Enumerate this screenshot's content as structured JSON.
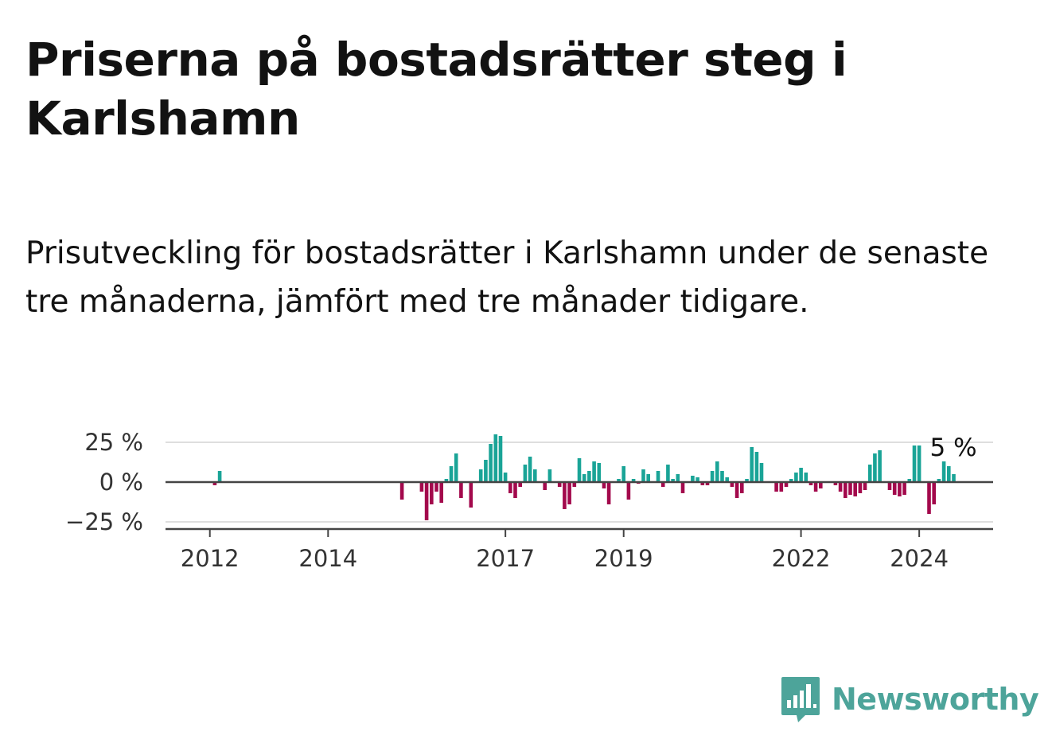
{
  "title": "Priserna på bostadsrätter steg i Karlshamn",
  "subtitle": "Prisutveckling för bostadsrätter i Karlshamn under de senaste tre månaderna, jämfört med tre månader tidigare.",
  "colors": {
    "positive": "#1aa497",
    "negative": "#a3094c",
    "grid": "#dedede",
    "axis": "#444444",
    "brand": "#4da49a"
  },
  "logo": {
    "text": "Newsworthy",
    "icon": "bar-chart-speech-bubble-icon"
  },
  "chart_data": {
    "type": "bar",
    "title": "",
    "xlabel": "",
    "ylabel": "",
    "ylim": [
      -30,
      27
    ],
    "grid": true,
    "y_ticks": [
      {
        "value": 25,
        "label": "25 %"
      },
      {
        "value": 0,
        "label": "0 %"
      },
      {
        "value": -25,
        "label": "−25 %"
      }
    ],
    "x_ticks": [
      {
        "value": "2012-01",
        "label": "2012"
      },
      {
        "value": "2014-01",
        "label": "2014"
      },
      {
        "value": "2017-01",
        "label": "2017"
      },
      {
        "value": "2019-01",
        "label": "2019"
      },
      {
        "value": "2022-01",
        "label": "2022"
      },
      {
        "value": "2024-01",
        "label": "2024"
      }
    ],
    "last_value_label": "5 %",
    "x_start": "2011-04",
    "x_end": "2025-04",
    "series": [
      {
        "values": [
          {
            "x": "2012-02",
            "y": -2
          },
          {
            "x": "2012-03",
            "y": 7
          },
          {
            "x": "2015-04",
            "y": -11
          },
          {
            "x": "2015-08",
            "y": -6
          },
          {
            "x": "2015-09",
            "y": -24
          },
          {
            "x": "2015-10",
            "y": -14
          },
          {
            "x": "2015-11",
            "y": -6
          },
          {
            "x": "2015-12",
            "y": -13
          },
          {
            "x": "2016-01",
            "y": 2
          },
          {
            "x": "2016-02",
            "y": 10
          },
          {
            "x": "2016-03",
            "y": 18
          },
          {
            "x": "2016-04",
            "y": -10
          },
          {
            "x": "2016-06",
            "y": -16
          },
          {
            "x": "2016-08",
            "y": 8
          },
          {
            "x": "2016-09",
            "y": 14
          },
          {
            "x": "2016-10",
            "y": 24
          },
          {
            "x": "2016-11",
            "y": 30
          },
          {
            "x": "2016-12",
            "y": 29
          },
          {
            "x": "2017-01",
            "y": 6
          },
          {
            "x": "2017-02",
            "y": -7
          },
          {
            "x": "2017-03",
            "y": -10
          },
          {
            "x": "2017-04",
            "y": -3
          },
          {
            "x": "2017-05",
            "y": 11
          },
          {
            "x": "2017-06",
            "y": 16
          },
          {
            "x": "2017-07",
            "y": 8
          },
          {
            "x": "2017-09",
            "y": -5
          },
          {
            "x": "2017-10",
            "y": 8
          },
          {
            "x": "2017-12",
            "y": -3
          },
          {
            "x": "2018-01",
            "y": -17
          },
          {
            "x": "2018-02",
            "y": -14
          },
          {
            "x": "2018-03",
            "y": -3
          },
          {
            "x": "2018-04",
            "y": 15
          },
          {
            "x": "2018-05",
            "y": 5
          },
          {
            "x": "2018-06",
            "y": 7
          },
          {
            "x": "2018-07",
            "y": 13
          },
          {
            "x": "2018-08",
            "y": 12
          },
          {
            "x": "2018-09",
            "y": -4
          },
          {
            "x": "2018-10",
            "y": -14
          },
          {
            "x": "2018-12",
            "y": 2
          },
          {
            "x": "2019-01",
            "y": 10
          },
          {
            "x": "2019-02",
            "y": -11
          },
          {
            "x": "2019-03",
            "y": 2
          },
          {
            "x": "2019-04",
            "y": -1
          },
          {
            "x": "2019-05",
            "y": 8
          },
          {
            "x": "2019-06",
            "y": 5
          },
          {
            "x": "2019-08",
            "y": 7
          },
          {
            "x": "2019-09",
            "y": -3
          },
          {
            "x": "2019-10",
            "y": 11
          },
          {
            "x": "2019-11",
            "y": 2
          },
          {
            "x": "2019-12",
            "y": 5
          },
          {
            "x": "2020-01",
            "y": -7
          },
          {
            "x": "2020-03",
            "y": 4
          },
          {
            "x": "2020-04",
            "y": 3
          },
          {
            "x": "2020-05",
            "y": -2
          },
          {
            "x": "2020-06",
            "y": -2
          },
          {
            "x": "2020-07",
            "y": 7
          },
          {
            "x": "2020-08",
            "y": 13
          },
          {
            "x": "2020-09",
            "y": 7
          },
          {
            "x": "2020-10",
            "y": 3
          },
          {
            "x": "2020-11",
            "y": -3
          },
          {
            "x": "2020-12",
            "y": -10
          },
          {
            "x": "2021-01",
            "y": -7
          },
          {
            "x": "2021-02",
            "y": 2
          },
          {
            "x": "2021-03",
            "y": 22
          },
          {
            "x": "2021-04",
            "y": 19
          },
          {
            "x": "2021-05",
            "y": 12
          },
          {
            "x": "2021-08",
            "y": -6
          },
          {
            "x": "2021-09",
            "y": -6
          },
          {
            "x": "2021-10",
            "y": -3
          },
          {
            "x": "2021-11",
            "y": 2
          },
          {
            "x": "2021-12",
            "y": 6
          },
          {
            "x": "2022-01",
            "y": 9
          },
          {
            "x": "2022-02",
            "y": 6
          },
          {
            "x": "2022-03",
            "y": -2
          },
          {
            "x": "2022-04",
            "y": -6
          },
          {
            "x": "2022-05",
            "y": -4
          },
          {
            "x": "2022-08",
            "y": -2
          },
          {
            "x": "2022-09",
            "y": -6
          },
          {
            "x": "2022-10",
            "y": -10
          },
          {
            "x": "2022-11",
            "y": -8
          },
          {
            "x": "2022-12",
            "y": -9
          },
          {
            "x": "2023-01",
            "y": -7
          },
          {
            "x": "2023-02",
            "y": -5
          },
          {
            "x": "2023-03",
            "y": 11
          },
          {
            "x": "2023-04",
            "y": 18
          },
          {
            "x": "2023-05",
            "y": 20
          },
          {
            "x": "2023-07",
            "y": -5
          },
          {
            "x": "2023-08",
            "y": -8
          },
          {
            "x": "2023-09",
            "y": -9
          },
          {
            "x": "2023-10",
            "y": -8
          },
          {
            "x": "2023-11",
            "y": 2
          },
          {
            "x": "2023-12",
            "y": 23
          },
          {
            "x": "2024-01",
            "y": 23
          },
          {
            "x": "2024-03",
            "y": -20
          },
          {
            "x": "2024-04",
            "y": -14
          },
          {
            "x": "2024-05",
            "y": 2
          },
          {
            "x": "2024-06",
            "y": 13
          },
          {
            "x": "2024-07",
            "y": 10
          },
          {
            "x": "2024-08",
            "y": 5
          }
        ]
      }
    ]
  }
}
